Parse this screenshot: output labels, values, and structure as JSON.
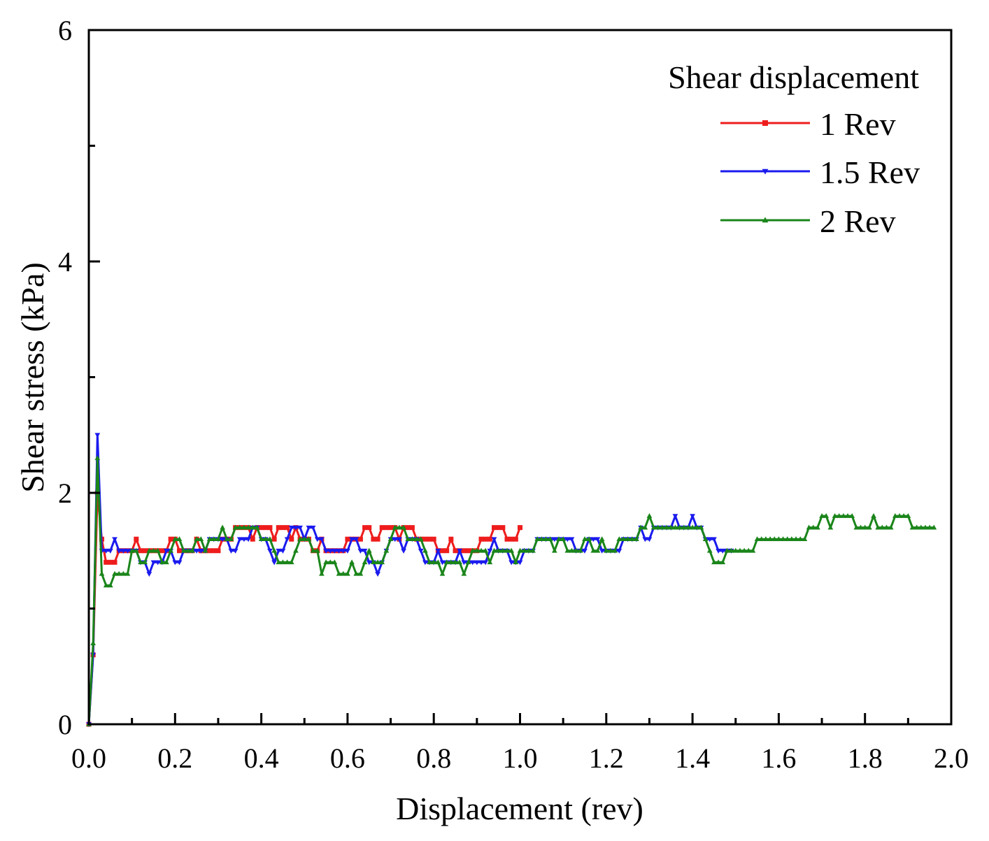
{
  "chart_data": {
    "type": "line",
    "title": "",
    "xlabel": "Displacement (rev)",
    "ylabel": "Shear stress (kPa)",
    "xlim": [
      0,
      2.0
    ],
    "ylim": [
      0,
      6
    ],
    "x_ticks": [
      "0.0",
      "0.2",
      "0.4",
      "0.6",
      "0.8",
      "1.0",
      "1.2",
      "1.4",
      "1.6",
      "1.8",
      "2.0"
    ],
    "y_ticks": [
      "0",
      "2",
      "4",
      "6"
    ],
    "x_tick_step": 0.2,
    "y_tick_values": [
      0,
      2,
      4,
      6
    ],
    "x_minor_step": 0.1,
    "y_minor_step": 1,
    "grid": false,
    "legend": {
      "title": "Shear displacement",
      "position": "top-right"
    },
    "series": [
      {
        "name": "1 Rev",
        "color": "#ee1c1c",
        "marker": "square",
        "x_step": 0.01,
        "values": [
          0.0,
          0.6,
          2.0,
          1.6,
          1.4,
          1.4,
          1.4,
          1.5,
          1.5,
          1.5,
          1.5,
          1.6,
          1.5,
          1.5,
          1.5,
          1.5,
          1.5,
          1.5,
          1.5,
          1.6,
          1.6,
          1.5,
          1.5,
          1.5,
          1.5,
          1.6,
          1.5,
          1.5,
          1.5,
          1.5,
          1.5,
          1.6,
          1.6,
          1.6,
          1.7,
          1.7,
          1.7,
          1.7,
          1.6,
          1.7,
          1.7,
          1.7,
          1.7,
          1.6,
          1.7,
          1.7,
          1.7,
          1.6,
          1.7,
          1.6,
          1.6,
          1.6,
          1.5,
          1.5,
          1.6,
          1.5,
          1.5,
          1.5,
          1.5,
          1.5,
          1.6,
          1.6,
          1.6,
          1.6,
          1.7,
          1.7,
          1.6,
          1.6,
          1.7,
          1.7,
          1.7,
          1.7,
          1.6,
          1.7,
          1.7,
          1.7,
          1.6,
          1.6,
          1.6,
          1.6,
          1.6,
          1.5,
          1.5,
          1.5,
          1.6,
          1.5,
          1.5,
          1.5,
          1.5,
          1.5,
          1.5,
          1.6,
          1.6,
          1.6,
          1.7,
          1.7,
          1.7,
          1.6,
          1.6,
          1.6,
          1.7
        ]
      },
      {
        "name": "1.5 Rev",
        "color": "#1a1aee",
        "marker": "triangle-down",
        "x_step": 0.01,
        "values": [
          0.0,
          0.6,
          2.5,
          1.5,
          1.5,
          1.5,
          1.6,
          1.5,
          1.5,
          1.5,
          1.5,
          1.5,
          1.4,
          1.4,
          1.3,
          1.4,
          1.4,
          1.4,
          1.5,
          1.5,
          1.4,
          1.4,
          1.5,
          1.5,
          1.5,
          1.5,
          1.5,
          1.5,
          1.6,
          1.6,
          1.6,
          1.6,
          1.6,
          1.5,
          1.5,
          1.6,
          1.6,
          1.6,
          1.7,
          1.7,
          1.6,
          1.6,
          1.5,
          1.4,
          1.5,
          1.5,
          1.6,
          1.7,
          1.7,
          1.7,
          1.6,
          1.7,
          1.7,
          1.6,
          1.6,
          1.5,
          1.5,
          1.5,
          1.5,
          1.5,
          1.5,
          1.6,
          1.6,
          1.5,
          1.5,
          1.4,
          1.4,
          1.3,
          1.4,
          1.5,
          1.6,
          1.6,
          1.6,
          1.5,
          1.6,
          1.6,
          1.6,
          1.5,
          1.4,
          1.4,
          1.4,
          1.5,
          1.4,
          1.4,
          1.4,
          1.4,
          1.5,
          1.4,
          1.4,
          1.4,
          1.4,
          1.4,
          1.4,
          1.5,
          1.6,
          1.5,
          1.5,
          1.5,
          1.4,
          1.4,
          1.4,
          1.5,
          1.5,
          1.5,
          1.6,
          1.6,
          1.6,
          1.6,
          1.6,
          1.6,
          1.6,
          1.6,
          1.6,
          1.5,
          1.5,
          1.5,
          1.6,
          1.6,
          1.6,
          1.5,
          1.5,
          1.5,
          1.5,
          1.5,
          1.6,
          1.6,
          1.6,
          1.6,
          1.7,
          1.6,
          1.6,
          1.7,
          1.7,
          1.7,
          1.7,
          1.7,
          1.8,
          1.7,
          1.7,
          1.7,
          1.8,
          1.7,
          1.7,
          1.6,
          1.6,
          1.6,
          1.5,
          1.5,
          1.5,
          1.5
        ]
      },
      {
        "name": "2 Rev",
        "color": "#1a851a",
        "marker": "triangle-up",
        "x_step": 0.01,
        "values": [
          0.0,
          0.7,
          2.3,
          1.3,
          1.2,
          1.2,
          1.3,
          1.3,
          1.3,
          1.3,
          1.5,
          1.5,
          1.4,
          1.4,
          1.5,
          1.5,
          1.5,
          1.4,
          1.4,
          1.5,
          1.6,
          1.6,
          1.5,
          1.5,
          1.5,
          1.6,
          1.6,
          1.5,
          1.6,
          1.6,
          1.6,
          1.7,
          1.6,
          1.6,
          1.7,
          1.7,
          1.7,
          1.7,
          1.7,
          1.7,
          1.6,
          1.6,
          1.6,
          1.5,
          1.4,
          1.4,
          1.4,
          1.4,
          1.5,
          1.6,
          1.6,
          1.6,
          1.5,
          1.5,
          1.3,
          1.4,
          1.4,
          1.4,
          1.3,
          1.3,
          1.3,
          1.4,
          1.3,
          1.3,
          1.4,
          1.5,
          1.4,
          1.4,
          1.4,
          1.5,
          1.6,
          1.7,
          1.7,
          1.7,
          1.6,
          1.6,
          1.6,
          1.6,
          1.5,
          1.4,
          1.4,
          1.4,
          1.3,
          1.4,
          1.4,
          1.4,
          1.4,
          1.3,
          1.4,
          1.5,
          1.5,
          1.5,
          1.5,
          1.4,
          1.5,
          1.5,
          1.5,
          1.5,
          1.5,
          1.4,
          1.5,
          1.5,
          1.5,
          1.5,
          1.6,
          1.6,
          1.6,
          1.6,
          1.5,
          1.6,
          1.6,
          1.5,
          1.5,
          1.5,
          1.5,
          1.6,
          1.6,
          1.5,
          1.5,
          1.6,
          1.5,
          1.5,
          1.5,
          1.6,
          1.6,
          1.6,
          1.6,
          1.6,
          1.7,
          1.7,
          1.8,
          1.7,
          1.7,
          1.7,
          1.7,
          1.7,
          1.7,
          1.7,
          1.7,
          1.7,
          1.7,
          1.7,
          1.7,
          1.6,
          1.5,
          1.4,
          1.4,
          1.4,
          1.5,
          1.5,
          1.5,
          1.5,
          1.5,
          1.5,
          1.5,
          1.6,
          1.6,
          1.6,
          1.6,
          1.6,
          1.6,
          1.6,
          1.6,
          1.6,
          1.6,
          1.6,
          1.6,
          1.7,
          1.7,
          1.7,
          1.8,
          1.8,
          1.7,
          1.8,
          1.8,
          1.8,
          1.8,
          1.8,
          1.7,
          1.7,
          1.7,
          1.7,
          1.8,
          1.7,
          1.7,
          1.7,
          1.7,
          1.8,
          1.8,
          1.8,
          1.8,
          1.7,
          1.7,
          1.7,
          1.7,
          1.7,
          1.7
        ]
      }
    ]
  }
}
